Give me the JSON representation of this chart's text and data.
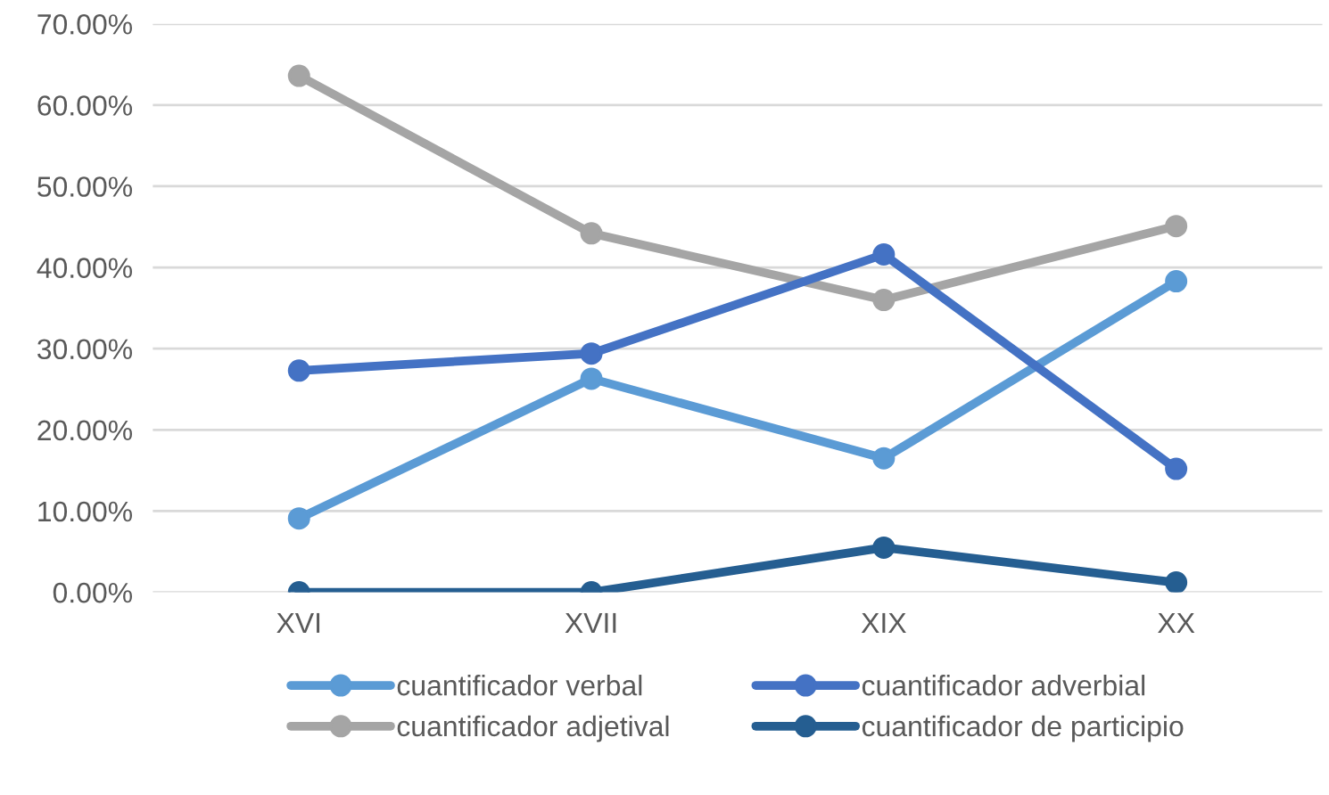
{
  "chart_data": {
    "type": "line",
    "categories": [
      "XVI",
      "XVII",
      "XIX",
      "XX"
    ],
    "series": [
      {
        "name": "cuantificador verbal",
        "color": "#5b9bd5",
        "values": [
          9.1,
          26.3,
          16.5,
          38.3
        ]
      },
      {
        "name": "cuantificador adjetival",
        "color": "#a5a5a5",
        "values": [
          63.6,
          44.2,
          36.0,
          45.1
        ]
      },
      {
        "name": "cuantificador adverbial",
        "color": "#4472c4",
        "values": [
          27.3,
          29.4,
          41.6,
          15.2
        ]
      },
      {
        "name": "cuantificador de participio",
        "color": "#255e91",
        "values": [
          0,
          0,
          5.5,
          1.2
        ]
      }
    ],
    "ylim": [
      0,
      70
    ],
    "yticks": [
      {
        "value": 0,
        "label": "0.00%"
      },
      {
        "value": 10,
        "label": "10.00%"
      },
      {
        "value": 20,
        "label": "20.00%"
      },
      {
        "value": 30,
        "label": "30.00%"
      },
      {
        "value": 40,
        "label": "40.00%"
      },
      {
        "value": 50,
        "label": "50.00%"
      },
      {
        "value": 60,
        "label": "60.00%"
      },
      {
        "value": 70,
        "label": "70.00%"
      }
    ],
    "grid": "y",
    "legend": "bottom",
    "marker": "circle",
    "line_style": "solid"
  }
}
